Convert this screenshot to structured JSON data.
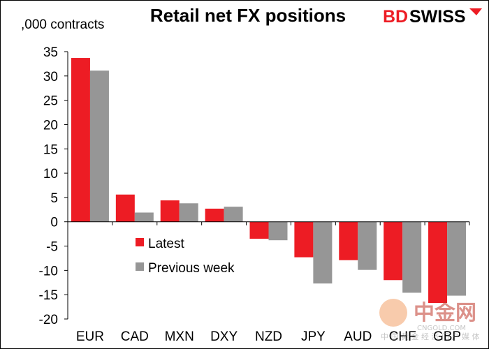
{
  "chart_data": {
    "type": "bar",
    "title": "Retail net FX positions",
    "ylabel": ",000 contracts",
    "xlabel": "",
    "categories": [
      "EUR",
      "CAD",
      "MXN",
      "DXY",
      "NZD",
      "JPY",
      "AUD",
      "CHF",
      "GBP"
    ],
    "series": [
      {
        "name": "Latest",
        "color": "#ed1c24",
        "values": [
          33.7,
          5.6,
          4.4,
          2.7,
          -3.5,
          -7.3,
          -7.9,
          -12.0,
          -16.7
        ]
      },
      {
        "name": "Previous week",
        "color": "#969696",
        "values": [
          31.1,
          1.9,
          3.8,
          3.1,
          -3.8,
          -12.7,
          -9.9,
          -14.6,
          -15.2
        ]
      }
    ],
    "ylim": [
      -20,
      35
    ],
    "yticks": [
      35,
      30,
      25,
      20,
      15,
      10,
      5,
      0,
      -5,
      -10,
      -15,
      -20
    ],
    "grid": false,
    "legend_position": "center-left"
  },
  "logo": {
    "text_bd": "BD",
    "text_swiss": "SWISS",
    "color": "#ed1c24"
  },
  "watermark": {
    "name": "中金网",
    "url": "CNGOLD.COM",
    "tagline": "中 国 黄 金 经 济 门 户 媒 体"
  }
}
